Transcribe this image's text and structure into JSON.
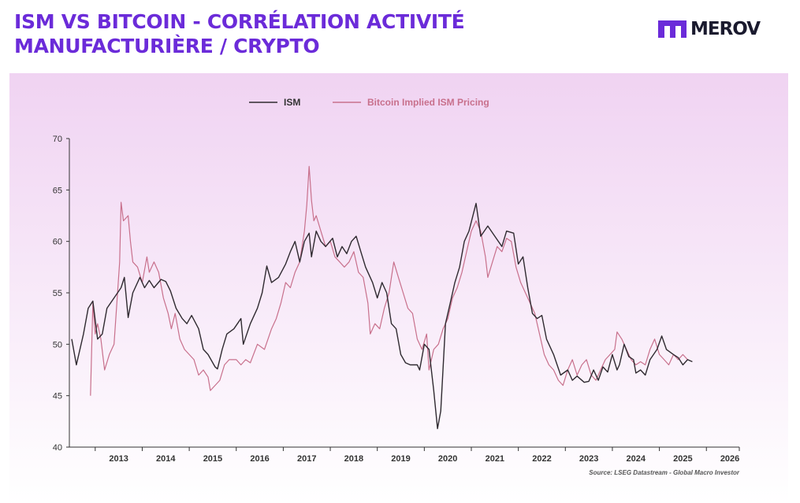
{
  "header": {
    "title_line1": "ISM VS BITCOIN - CORRÉLATION ACTIVITÉ",
    "title_line2": "MANUFACTURIÈRE / CRYPTO"
  },
  "logo": {
    "text": "MEROV",
    "icon": "merov-m-logo-icon"
  },
  "colors": {
    "title": "#6b2bd9",
    "ism": "#2f2a30",
    "bitcoin": "#c8708c",
    "bg_top": "#f0d3f2",
    "bg_bottom": "#ffffff"
  },
  "chart_data": {
    "type": "line",
    "title": "",
    "xlabel": "",
    "ylabel": "",
    "xlim": [
      2012.45,
      2026.7
    ],
    "ylim": [
      40,
      70
    ],
    "yticks": [
      40,
      45,
      50,
      55,
      60,
      65,
      70
    ],
    "xticks": [
      "2013",
      "2014",
      "2015",
      "2016",
      "2017",
      "2018",
      "2019",
      "2020",
      "2021",
      "2022",
      "2023",
      "2024",
      "2025",
      "2026"
    ],
    "legend_position": "top",
    "source": "Source: LSEG Datastream - Global Macro Investor",
    "series": [
      {
        "name": "ISM",
        "points": [
          [
            2012.5,
            50.5
          ],
          [
            2012.6,
            48.0
          ],
          [
            2012.75,
            51.0
          ],
          [
            2012.85,
            53.5
          ],
          [
            2012.95,
            54.2
          ],
          [
            2013.05,
            50.5
          ],
          [
            2013.15,
            51.0
          ],
          [
            2013.25,
            53.5
          ],
          [
            2013.4,
            54.5
          ],
          [
            2013.55,
            55.5
          ],
          [
            2013.62,
            56.5
          ],
          [
            2013.7,
            52.6
          ],
          [
            2013.8,
            55.0
          ],
          [
            2013.95,
            56.5
          ],
          [
            2014.05,
            55.5
          ],
          [
            2014.15,
            56.2
          ],
          [
            2014.25,
            55.5
          ],
          [
            2014.4,
            56.3
          ],
          [
            2014.5,
            56.1
          ],
          [
            2014.6,
            55.2
          ],
          [
            2014.72,
            53.5
          ],
          [
            2014.85,
            52.5
          ],
          [
            2014.95,
            52.0
          ],
          [
            2015.05,
            52.8
          ],
          [
            2015.2,
            51.5
          ],
          [
            2015.3,
            49.5
          ],
          [
            2015.4,
            49.0
          ],
          [
            2015.55,
            47.8
          ],
          [
            2015.6,
            47.6
          ],
          [
            2015.7,
            49.5
          ],
          [
            2015.8,
            51.0
          ],
          [
            2015.95,
            51.5
          ],
          [
            2016.1,
            52.5
          ],
          [
            2016.15,
            50.0
          ],
          [
            2016.3,
            52.0
          ],
          [
            2016.45,
            53.5
          ],
          [
            2016.55,
            55.0
          ],
          [
            2016.65,
            57.6
          ],
          [
            2016.75,
            56.0
          ],
          [
            2016.9,
            56.5
          ],
          [
            2017.05,
            57.8
          ],
          [
            2017.15,
            59.0
          ],
          [
            2017.25,
            60.0
          ],
          [
            2017.35,
            58.0
          ],
          [
            2017.45,
            60.0
          ],
          [
            2017.55,
            60.8
          ],
          [
            2017.6,
            58.5
          ],
          [
            2017.7,
            61.0
          ],
          [
            2017.8,
            60.0
          ],
          [
            2017.9,
            59.5
          ],
          [
            2018.05,
            60.3
          ],
          [
            2018.15,
            58.5
          ],
          [
            2018.25,
            59.5
          ],
          [
            2018.35,
            58.8
          ],
          [
            2018.45,
            60.0
          ],
          [
            2018.55,
            60.5
          ],
          [
            2018.65,
            59.0
          ],
          [
            2018.75,
            57.5
          ],
          [
            2018.9,
            56.0
          ],
          [
            2019.0,
            54.5
          ],
          [
            2019.1,
            56.0
          ],
          [
            2019.2,
            55.0
          ],
          [
            2019.3,
            52.0
          ],
          [
            2019.4,
            51.5
          ],
          [
            2019.5,
            49.0
          ],
          [
            2019.6,
            48.2
          ],
          [
            2019.7,
            48.0
          ],
          [
            2019.85,
            48.0
          ],
          [
            2019.9,
            47.5
          ],
          [
            2020.0,
            50.0
          ],
          [
            2020.1,
            49.5
          ],
          [
            2020.2,
            45.5
          ],
          [
            2020.28,
            41.8
          ],
          [
            2020.35,
            43.5
          ],
          [
            2020.45,
            52.0
          ],
          [
            2020.55,
            54.0
          ],
          [
            2020.65,
            56.0
          ],
          [
            2020.75,
            57.5
          ],
          [
            2020.85,
            60.0
          ],
          [
            2020.95,
            61.0
          ],
          [
            2021.1,
            63.7
          ],
          [
            2021.2,
            60.5
          ],
          [
            2021.35,
            61.5
          ],
          [
            2021.5,
            60.5
          ],
          [
            2021.65,
            59.5
          ],
          [
            2021.75,
            61.0
          ],
          [
            2021.9,
            60.8
          ],
          [
            2022.0,
            57.8
          ],
          [
            2022.1,
            58.5
          ],
          [
            2022.2,
            55.5
          ],
          [
            2022.3,
            53.0
          ],
          [
            2022.4,
            52.5
          ],
          [
            2022.5,
            52.8
          ],
          [
            2022.6,
            50.5
          ],
          [
            2022.75,
            49.0
          ],
          [
            2022.9,
            47.0
          ],
          [
            2023.05,
            47.5
          ],
          [
            2023.15,
            46.5
          ],
          [
            2023.25,
            46.9
          ],
          [
            2023.4,
            46.3
          ],
          [
            2023.5,
            46.4
          ],
          [
            2023.6,
            47.5
          ],
          [
            2023.7,
            46.5
          ],
          [
            2023.8,
            47.8
          ],
          [
            2023.9,
            47.3
          ],
          [
            2024.0,
            49.0
          ],
          [
            2024.1,
            47.5
          ],
          [
            2024.15,
            48.0
          ],
          [
            2024.25,
            50.0
          ],
          [
            2024.35,
            48.8
          ],
          [
            2024.45,
            48.5
          ],
          [
            2024.5,
            47.2
          ],
          [
            2024.6,
            47.5
          ],
          [
            2024.7,
            47.0
          ],
          [
            2024.8,
            48.5
          ],
          [
            2024.95,
            49.5
          ],
          [
            2025.05,
            50.8
          ],
          [
            2025.15,
            49.5
          ],
          [
            2025.3,
            49.0
          ],
          [
            2025.4,
            48.7
          ],
          [
            2025.5,
            48.0
          ],
          [
            2025.6,
            48.5
          ],
          [
            2025.7,
            48.3
          ]
        ]
      },
      {
        "name": "Bitcoin Implied ISM Pricing",
        "points": [
          [
            2012.9,
            45.0
          ],
          [
            2012.95,
            54.0
          ],
          [
            2013.0,
            51.0
          ],
          [
            2013.05,
            52.0
          ],
          [
            2013.12,
            50.5
          ],
          [
            2013.2,
            47.5
          ],
          [
            2013.3,
            49.0
          ],
          [
            2013.4,
            50.0
          ],
          [
            2013.52,
            58.0
          ],
          [
            2013.55,
            63.8
          ],
          [
            2013.6,
            62.0
          ],
          [
            2013.7,
            62.5
          ],
          [
            2013.75,
            60.0
          ],
          [
            2013.8,
            58.0
          ],
          [
            2013.9,
            57.5
          ],
          [
            2014.0,
            56.0
          ],
          [
            2014.1,
            58.5
          ],
          [
            2014.15,
            57.0
          ],
          [
            2014.25,
            58.0
          ],
          [
            2014.35,
            57.0
          ],
          [
            2014.45,
            54.5
          ],
          [
            2014.55,
            53.0
          ],
          [
            2014.62,
            51.5
          ],
          [
            2014.7,
            53.0
          ],
          [
            2014.8,
            50.5
          ],
          [
            2014.9,
            49.5
          ],
          [
            2015.0,
            49.0
          ],
          [
            2015.1,
            48.5
          ],
          [
            2015.2,
            47.0
          ],
          [
            2015.3,
            47.5
          ],
          [
            2015.4,
            46.8
          ],
          [
            2015.45,
            45.5
          ],
          [
            2015.55,
            46.0
          ],
          [
            2015.65,
            46.5
          ],
          [
            2015.75,
            48.0
          ],
          [
            2015.85,
            48.5
          ],
          [
            2016.0,
            48.5
          ],
          [
            2016.1,
            48.0
          ],
          [
            2016.2,
            48.5
          ],
          [
            2016.3,
            48.2
          ],
          [
            2016.45,
            50.0
          ],
          [
            2016.6,
            49.5
          ],
          [
            2016.75,
            51.5
          ],
          [
            2016.85,
            52.5
          ],
          [
            2016.95,
            54.0
          ],
          [
            2017.05,
            56.0
          ],
          [
            2017.15,
            55.5
          ],
          [
            2017.25,
            57.0
          ],
          [
            2017.35,
            58.0
          ],
          [
            2017.45,
            61.0
          ],
          [
            2017.5,
            63.5
          ],
          [
            2017.55,
            67.3
          ],
          [
            2017.6,
            64.0
          ],
          [
            2017.65,
            62.0
          ],
          [
            2017.7,
            62.5
          ],
          [
            2017.8,
            61.0
          ],
          [
            2017.9,
            59.5
          ],
          [
            2018.0,
            60.0
          ],
          [
            2018.1,
            58.5
          ],
          [
            2018.2,
            58.0
          ],
          [
            2018.3,
            57.5
          ],
          [
            2018.4,
            58.0
          ],
          [
            2018.5,
            59.0
          ],
          [
            2018.6,
            57.0
          ],
          [
            2018.7,
            56.5
          ],
          [
            2018.8,
            54.0
          ],
          [
            2018.85,
            51.0
          ],
          [
            2018.95,
            52.0
          ],
          [
            2019.05,
            51.5
          ],
          [
            2019.15,
            53.5
          ],
          [
            2019.25,
            55.0
          ],
          [
            2019.35,
            58.0
          ],
          [
            2019.45,
            56.5
          ],
          [
            2019.55,
            55.0
          ],
          [
            2019.65,
            53.5
          ],
          [
            2019.75,
            53.0
          ],
          [
            2019.85,
            50.5
          ],
          [
            2019.95,
            49.5
          ],
          [
            2020.05,
            51.0
          ],
          [
            2020.1,
            47.5
          ],
          [
            2020.2,
            49.5
          ],
          [
            2020.3,
            50.0
          ],
          [
            2020.4,
            51.5
          ],
          [
            2020.5,
            52.5
          ],
          [
            2020.6,
            54.5
          ],
          [
            2020.7,
            55.5
          ],
          [
            2020.8,
            57.0
          ],
          [
            2020.9,
            59.0
          ],
          [
            2021.0,
            61.0
          ],
          [
            2021.1,
            62.0
          ],
          [
            2021.2,
            61.0
          ],
          [
            2021.3,
            58.5
          ],
          [
            2021.35,
            56.5
          ],
          [
            2021.45,
            58.0
          ],
          [
            2021.55,
            59.5
          ],
          [
            2021.65,
            59.0
          ],
          [
            2021.75,
            60.3
          ],
          [
            2021.85,
            60.0
          ],
          [
            2021.95,
            57.5
          ],
          [
            2022.05,
            56.0
          ],
          [
            2022.15,
            55.0
          ],
          [
            2022.25,
            54.0
          ],
          [
            2022.35,
            53.0
          ],
          [
            2022.45,
            51.0
          ],
          [
            2022.55,
            49.0
          ],
          [
            2022.65,
            48.0
          ],
          [
            2022.75,
            47.5
          ],
          [
            2022.85,
            46.5
          ],
          [
            2022.95,
            46.0
          ],
          [
            2023.05,
            47.5
          ],
          [
            2023.15,
            48.5
          ],
          [
            2023.25,
            47.0
          ],
          [
            2023.35,
            48.0
          ],
          [
            2023.45,
            48.5
          ],
          [
            2023.55,
            47.0
          ],
          [
            2023.65,
            46.5
          ],
          [
            2023.75,
            47.5
          ],
          [
            2023.85,
            48.5
          ],
          [
            2023.95,
            49.0
          ],
          [
            2024.05,
            49.5
          ],
          [
            2024.1,
            51.2
          ],
          [
            2024.2,
            50.5
          ],
          [
            2024.3,
            49.5
          ],
          [
            2024.4,
            48.5
          ],
          [
            2024.5,
            48.0
          ],
          [
            2024.6,
            48.3
          ],
          [
            2024.7,
            48.0
          ],
          [
            2024.8,
            49.5
          ],
          [
            2024.9,
            50.5
          ],
          [
            2025.0,
            49.0
          ],
          [
            2025.1,
            48.5
          ],
          [
            2025.2,
            48.0
          ],
          [
            2025.3,
            49.0
          ],
          [
            2025.4,
            48.5
          ],
          [
            2025.5,
            49.0
          ],
          [
            2025.6,
            48.5
          ]
        ]
      }
    ]
  }
}
